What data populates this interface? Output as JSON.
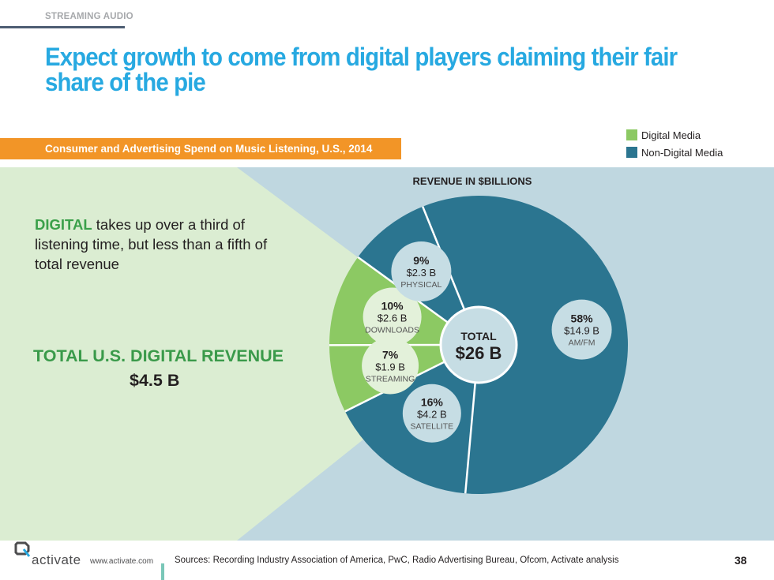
{
  "header": {
    "section_label": "STREAMING AUDIO",
    "title": "Expect growth to come from digital players claiming their fair share of the pie",
    "subtitle": "Consumer and Advertising Spend on Music Listening, U.S., 2014"
  },
  "legend": [
    {
      "label": "Digital Media",
      "color": "#8cc963"
    },
    {
      "label": "Non-Digital Media",
      "color": "#2b7590"
    }
  ],
  "callout": {
    "highlight": "DIGITAL",
    "text": " takes up over a third of listening time, but less than a fifth of total revenue"
  },
  "digital_total": {
    "label": "TOTAL U.S. DIGITAL REVENUE",
    "value": "$4.5 B"
  },
  "chart_data": {
    "type": "pie",
    "title": "REVENUE IN $BILLIONS",
    "center_label": "TOTAL",
    "center_value": "$26 B",
    "slices": [
      {
        "name": "AM/FM",
        "percent_label": "58%",
        "value_label": "$14.9 B",
        "value": 14.9,
        "group": "Non-Digital Media",
        "color": "#2b7590"
      },
      {
        "name": "SATELLITE",
        "percent_label": "16%",
        "value_label": "$4.2 B",
        "value": 4.2,
        "group": "Non-Digital Media",
        "color": "#2b7590"
      },
      {
        "name": "STREAMING",
        "percent_label": "7%",
        "value_label": "$1.9 B",
        "value": 1.9,
        "group": "Digital Media",
        "color": "#8cc963"
      },
      {
        "name": "DOWNLOADS",
        "percent_label": "10%",
        "value_label": "$2.6 B",
        "value": 2.6,
        "group": "Digital Media",
        "color": "#8cc963"
      },
      {
        "name": "PHYSICAL",
        "percent_label": "9%",
        "value_label": "$2.3 B",
        "value": 2.3,
        "group": "Non-Digital Media",
        "color": "#2b7590"
      }
    ]
  },
  "footer": {
    "brand": "activate",
    "url": "www.activate.com",
    "sources": "Sources: Recording Industry Association of America, PwC, Radio Advertising Bureau, Ofcom, Activate analysis",
    "page_number": "38"
  }
}
